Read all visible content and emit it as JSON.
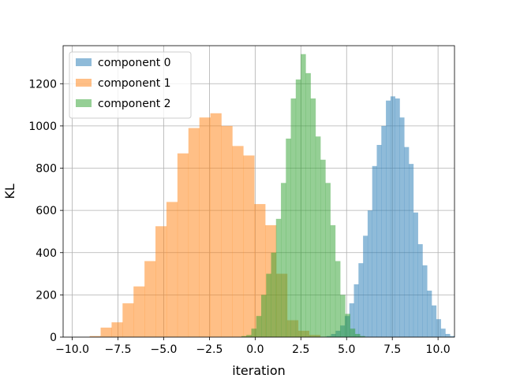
{
  "chart_data": {
    "type": "histogram",
    "xlabel": "iteration",
    "ylabel": "KL",
    "xlim": [
      -10.5,
      10.9
    ],
    "ylim": [
      0,
      1380
    ],
    "x_ticks": [
      -10.0,
      -7.5,
      -5.0,
      -2.5,
      0.0,
      2.5,
      5.0,
      7.5,
      10.0
    ],
    "x_tick_labels": [
      "−10.0",
      "−7.5",
      "−5.0",
      "−2.5",
      "0.0",
      "2.5",
      "5.0",
      "7.5",
      "10.0"
    ],
    "y_ticks": [
      0,
      200,
      400,
      600,
      800,
      1000,
      1200
    ],
    "y_tick_labels": [
      "0",
      "200",
      "400",
      "600",
      "800",
      "1000",
      "1200"
    ],
    "grid": true,
    "legend_position": "top-left",
    "alpha": 0.5,
    "series": [
      {
        "name": "component 0",
        "color": "#1f77b4",
        "bin_start": 3.9,
        "bin_width": 0.25,
        "counts": [
          5,
          15,
          30,
          55,
          100,
          160,
          250,
          350,
          480,
          600,
          810,
          910,
          1000,
          1120,
          1140,
          1130,
          1040,
          900,
          820,
          590,
          440,
          340,
          220,
          150,
          85,
          40,
          15,
          5
        ]
      },
      {
        "name": "component 1",
        "color": "#ff7f0e",
        "bin_start": -9.05,
        "bin_width": 0.6,
        "counts": [
          5,
          45,
          70,
          160,
          240,
          360,
          525,
          640,
          870,
          990,
          1040,
          1060,
          1000,
          905,
          860,
          630,
          530,
          300,
          80,
          30,
          10
        ]
      },
      {
        "name": "component 2",
        "color": "#2ca02c",
        "bin_start": -0.75,
        "bin_width": 0.27,
        "counts": [
          5,
          10,
          40,
          100,
          200,
          300,
          400,
          560,
          730,
          940,
          1130,
          1220,
          1340,
          1250,
          1130,
          950,
          840,
          730,
          530,
          360,
          200,
          110,
          40,
          15,
          5
        ]
      }
    ]
  }
}
